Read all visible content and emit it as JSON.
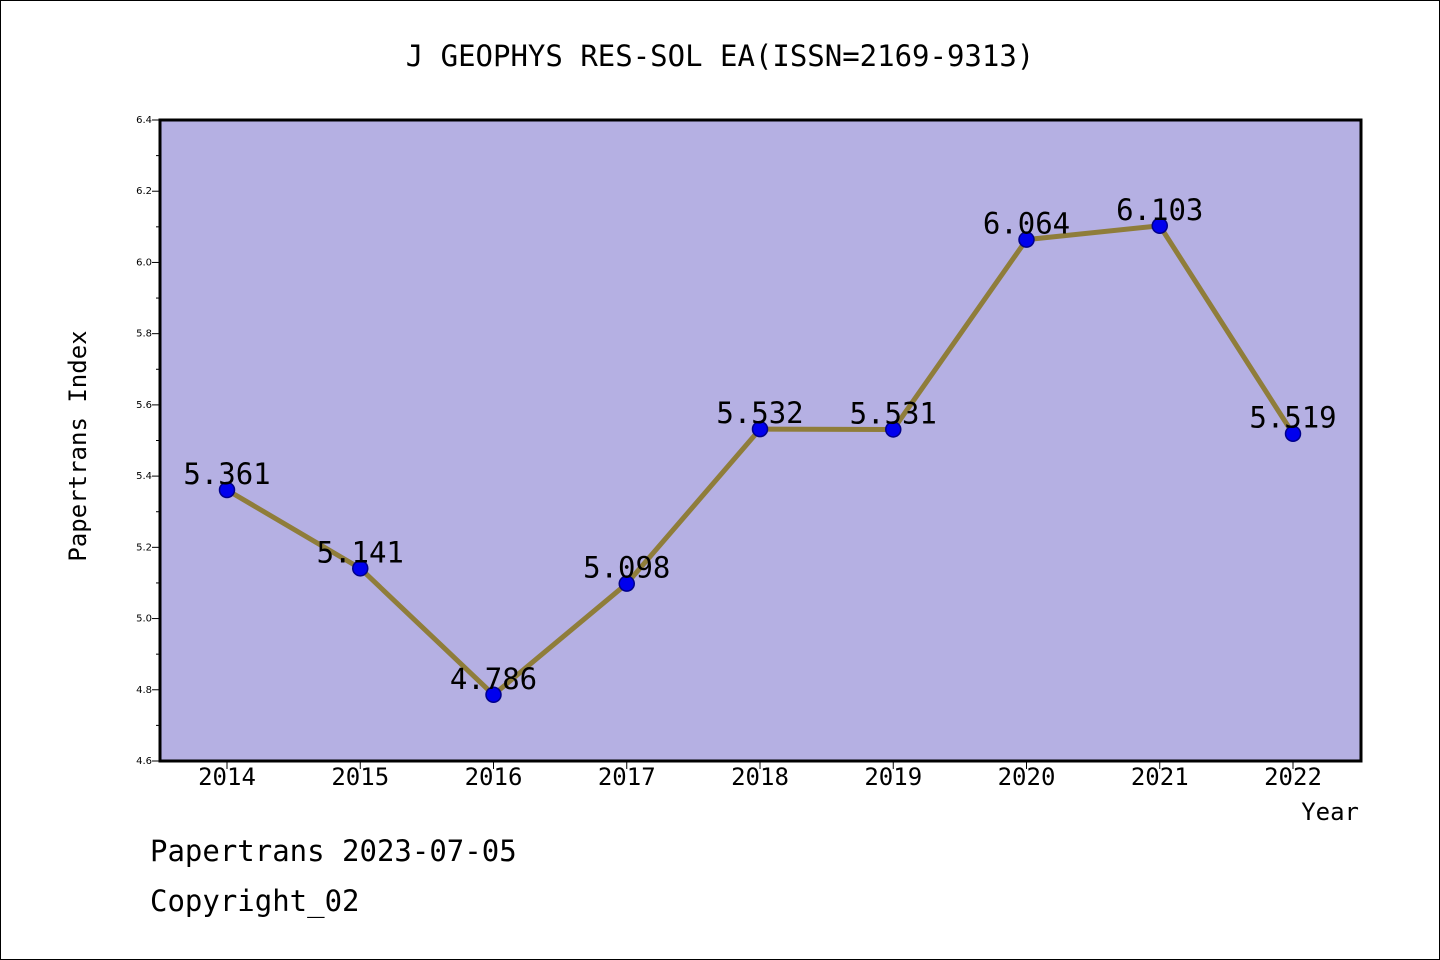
{
  "chart_data": {
    "type": "line",
    "title": "J GEOPHYS RES-SOL EA(ISSN=2169-9313)",
    "xlabel": "Year",
    "ylabel": "Papertrans Index",
    "categories": [
      "2014",
      "2015",
      "2016",
      "2017",
      "2018",
      "2019",
      "2020",
      "2021",
      "2022"
    ],
    "values": [
      5.361,
      5.141,
      4.786,
      5.098,
      5.532,
      5.531,
      6.064,
      6.103,
      5.519
    ],
    "data_labels": [
      "5.361",
      "5.141",
      "4.786",
      "5.098",
      "5.532",
      "5.531",
      "6.064",
      "6.103",
      "5.519"
    ],
    "ylim": [
      4.6,
      6.4
    ],
    "yticks": [
      "4.6",
      "4.8",
      "5.0",
      "5.2",
      "5.4",
      "5.6",
      "5.8",
      "6.0",
      "6.2",
      "6.4"
    ],
    "grid": false,
    "legend": "none",
    "colors": {
      "plot_background": "#b5b0e3",
      "line": "#8f7d3a",
      "marker": "#0000ee",
      "marker_edge": "#00008b"
    }
  },
  "footer": {
    "line1": "Papertrans 2023-07-05",
    "line2": "Copyright_02"
  }
}
